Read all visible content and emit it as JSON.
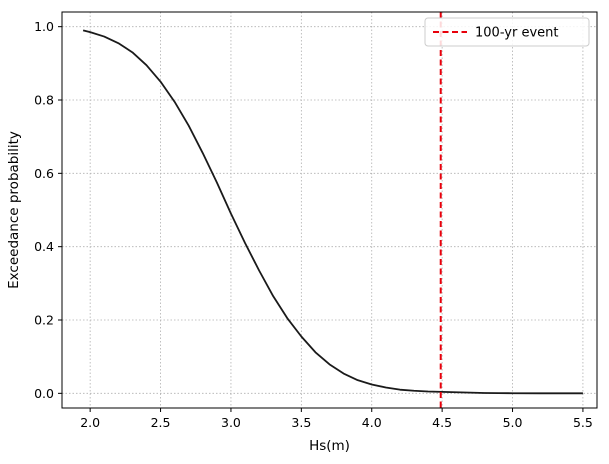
{
  "chart_data": {
    "type": "line",
    "title": "",
    "xlabel": "Hs(m)",
    "ylabel": "Exceedance probability",
    "xlim": [
      1.8,
      5.6
    ],
    "ylim": [
      -0.04,
      1.04
    ],
    "xticks": [
      2.0,
      2.5,
      3.0,
      3.5,
      4.0,
      4.5,
      5.0,
      5.5
    ],
    "xtick_labels": [
      "2.0",
      "2.5",
      "3.0",
      "3.5",
      "4.0",
      "4.5",
      "5.0",
      "5.5"
    ],
    "yticks": [
      0.0,
      0.2,
      0.4,
      0.6,
      0.8,
      1.0
    ],
    "ytick_labels": [
      "0.0",
      "0.2",
      "0.4",
      "0.6",
      "0.8",
      "1.0"
    ],
    "grid": true,
    "legend": {
      "placement": "top-right",
      "entries": [
        "100-yr event"
      ]
    },
    "series": [
      {
        "style": "solid",
        "color": "#1a1a1a",
        "x": [
          1.95,
          2.0,
          2.1,
          2.2,
          2.3,
          2.4,
          2.5,
          2.6,
          2.7,
          2.8,
          2.9,
          3.0,
          3.1,
          3.2,
          3.3,
          3.4,
          3.5,
          3.6,
          3.7,
          3.8,
          3.9,
          4.0,
          4.1,
          4.2,
          4.3,
          4.4,
          4.5,
          4.6,
          4.7,
          4.8,
          4.9,
          5.0,
          5.2,
          5.5
        ],
        "y": [
          0.99,
          0.985,
          0.973,
          0.955,
          0.93,
          0.895,
          0.85,
          0.795,
          0.73,
          0.655,
          0.575,
          0.49,
          0.41,
          0.335,
          0.265,
          0.205,
          0.155,
          0.112,
          0.079,
          0.054,
          0.036,
          0.024,
          0.016,
          0.01,
          0.007,
          0.005,
          0.004,
          0.003,
          0.002,
          0.001,
          0.0005,
          0.0003,
          0.0001,
          0.0
        ]
      }
    ],
    "vline": {
      "x": 4.49,
      "label": "100-yr event",
      "color": "#e8000b",
      "style": "dashed"
    }
  }
}
